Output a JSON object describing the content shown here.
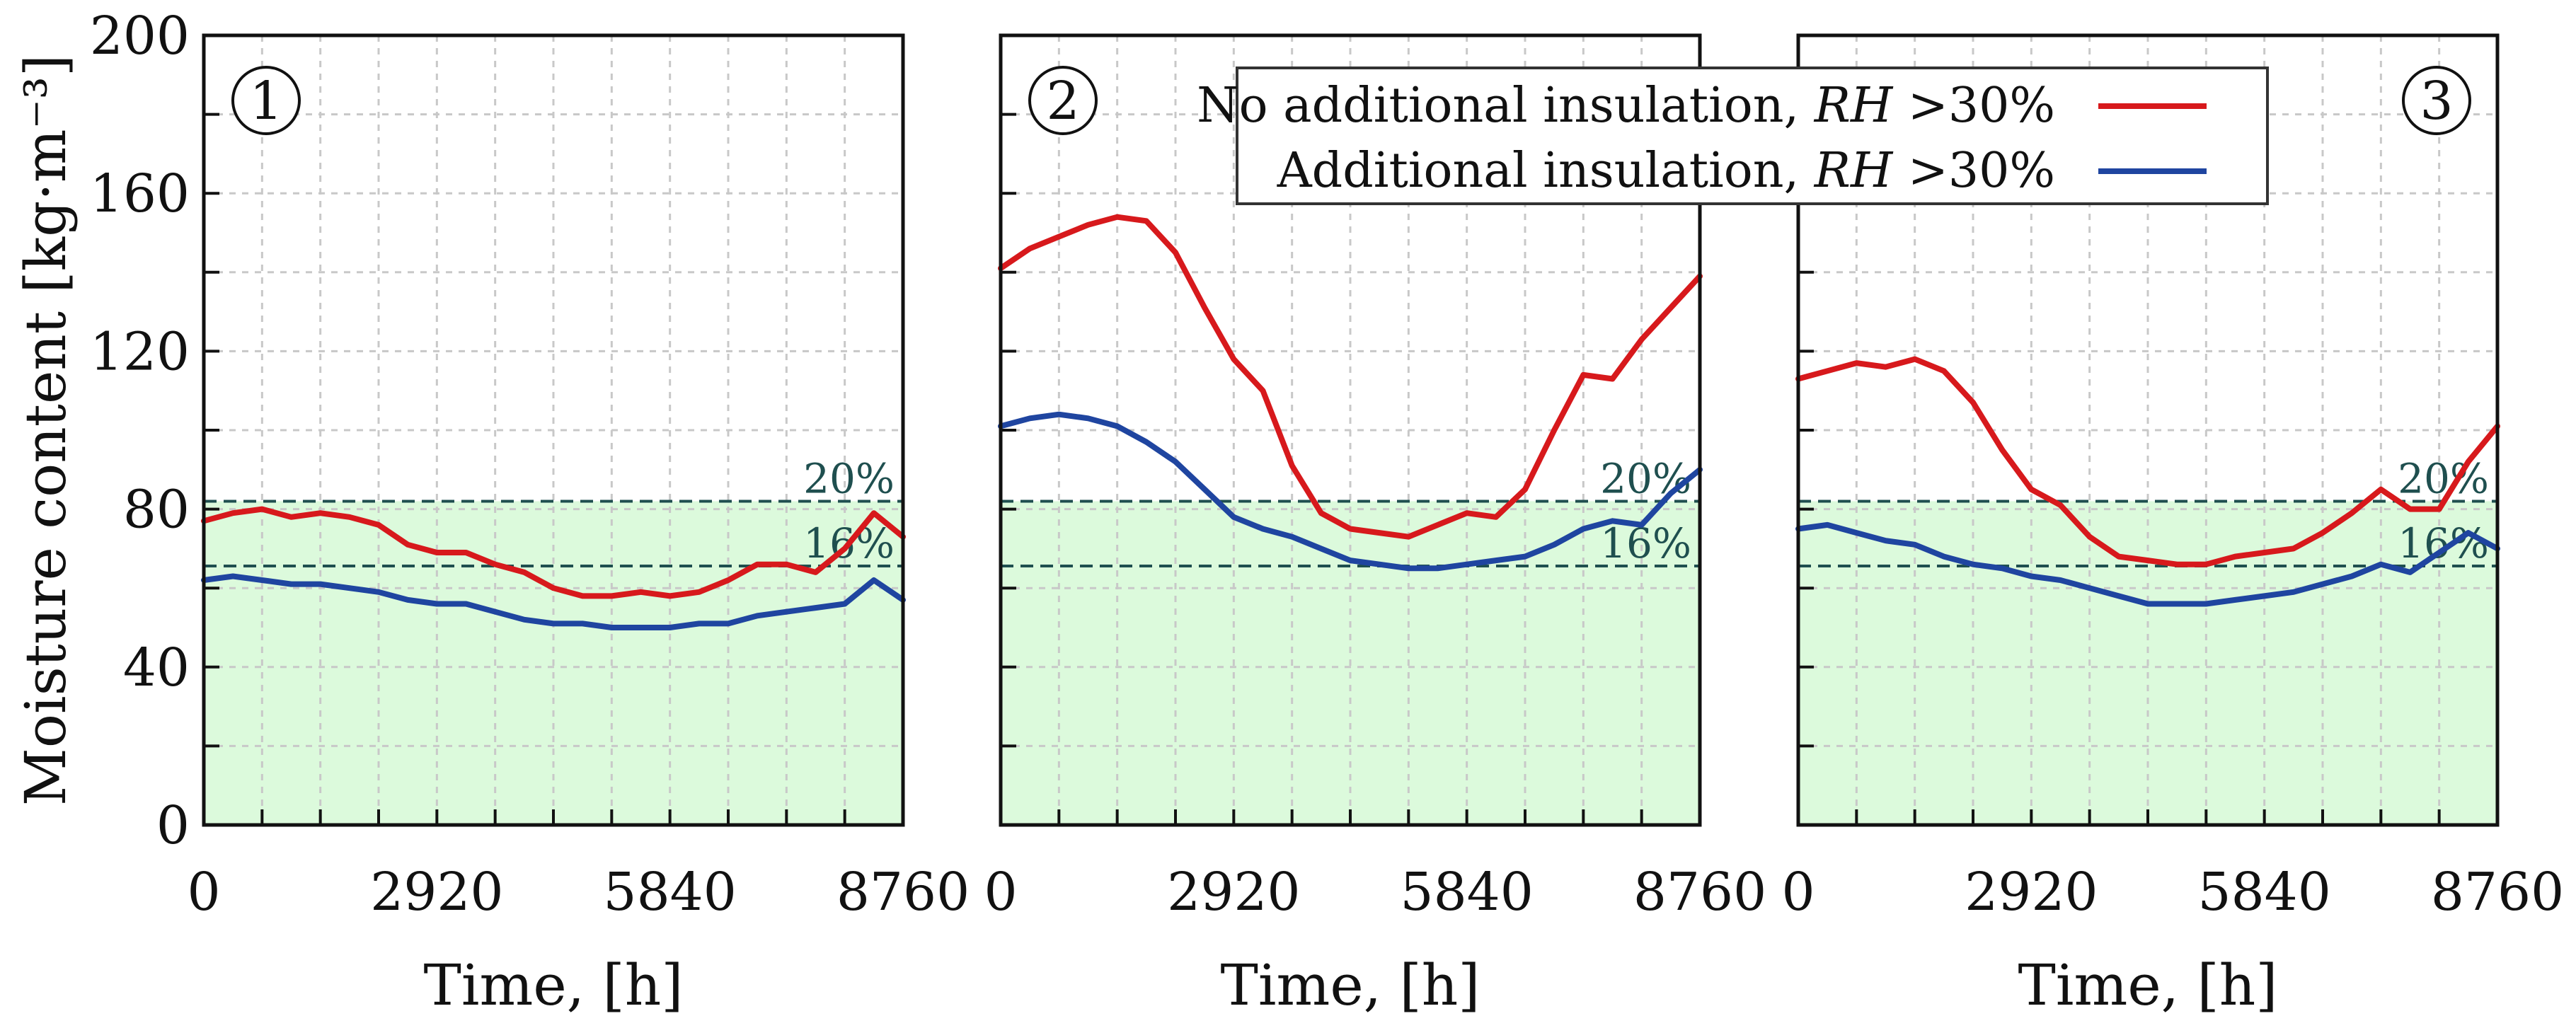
{
  "chart_data": {
    "type": "line",
    "y_axis_title": "Moisture content [kg·m⁻³]",
    "x_axis_title": "Time, [h]",
    "xlim": [
      0,
      8760
    ],
    "ylim": [
      0,
      200
    ],
    "x_ticks": [
      "0",
      "2920",
      "5840",
      "8760"
    ],
    "y_ticks": [
      "0",
      "40",
      "80",
      "120",
      "160",
      "200"
    ],
    "grid": true,
    "reference_lines": [
      {
        "label": "20%",
        "y": 82
      },
      {
        "label": "16%",
        "y": 65.6
      }
    ],
    "shaded_region": {
      "from": 0,
      "to": 82,
      "color": "#dcfadc"
    },
    "legend": {
      "placement": "top-center",
      "entries": [
        {
          "name": "No additional insulation, ",
          "italic": "RH",
          "suffix": " >30%",
          "color": "#d7191c"
        },
        {
          "name": "Additional insulation, ",
          "italic": "RH",
          "suffix": " >30%",
          "color": "#1f45a0"
        }
      ]
    },
    "panels": [
      {
        "badge": "1",
        "series": [
          {
            "name": "No additional insulation, RH >30%",
            "color": "#d7191c",
            "x": [
              0,
              365,
              730,
              1095,
              1460,
              1825,
              2190,
              2555,
              2920,
              3285,
              3650,
              4015,
              4380,
              4745,
              5110,
              5475,
              5840,
              6205,
              6570,
              6935,
              7300,
              7665,
              8030,
              8395,
              8760
            ],
            "y": [
              77,
              79,
              80,
              78,
              79,
              78,
              76,
              71,
              69,
              69,
              66,
              64,
              60,
              58,
              58,
              59,
              58,
              59,
              62,
              66,
              66,
              64,
              70,
              79,
              73
            ]
          },
          {
            "name": "Additional insulation, RH >30%",
            "color": "#1f45a0",
            "x": [
              0,
              365,
              730,
              1095,
              1460,
              1825,
              2190,
              2555,
              2920,
              3285,
              3650,
              4015,
              4380,
              4745,
              5110,
              5475,
              5840,
              6205,
              6570,
              6935,
              7300,
              7665,
              8030,
              8395,
              8760
            ],
            "y": [
              62,
              63,
              62,
              61,
              61,
              60,
              59,
              57,
              56,
              56,
              54,
              52,
              51,
              51,
              50,
              50,
              50,
              51,
              51,
              53,
              54,
              55,
              56,
              62,
              57
            ]
          }
        ]
      },
      {
        "badge": "2",
        "series": [
          {
            "name": "No additional insulation, RH >30%",
            "color": "#d7191c",
            "x": [
              0,
              365,
              730,
              1095,
              1460,
              1825,
              2190,
              2555,
              2920,
              3285,
              3650,
              4015,
              4380,
              4745,
              5110,
              5475,
              5840,
              6205,
              6570,
              6935,
              7300,
              7665,
              8030,
              8395,
              8760
            ],
            "y": [
              141,
              146,
              149,
              152,
              154,
              153,
              145,
              131,
              118,
              110,
              91,
              79,
              75,
              74,
              73,
              76,
              79,
              78,
              85,
              100,
              114,
              113,
              123,
              131,
              139
            ]
          },
          {
            "name": "Additional insulation, RH >30%",
            "color": "#1f45a0",
            "x": [
              0,
              365,
              730,
              1095,
              1460,
              1825,
              2190,
              2555,
              2920,
              3285,
              3650,
              4015,
              4380,
              4745,
              5110,
              5475,
              5840,
              6205,
              6570,
              6935,
              7300,
              7665,
              8030,
              8395,
              8760
            ],
            "y": [
              101,
              103,
              104,
              103,
              101,
              97,
              92,
              85,
              78,
              75,
              73,
              70,
              67,
              66,
              65,
              65,
              66,
              67,
              68,
              71,
              75,
              77,
              76,
              84,
              90
            ]
          }
        ]
      },
      {
        "badge": "3",
        "series": [
          {
            "name": "No additional insulation, RH >30%",
            "color": "#d7191c",
            "x": [
              0,
              365,
              730,
              1095,
              1460,
              1825,
              2190,
              2555,
              2920,
              3285,
              3650,
              4015,
              4380,
              4745,
              5110,
              5475,
              5840,
              6205,
              6570,
              6935,
              7300,
              7665,
              8030,
              8395,
              8760
            ],
            "y": [
              113,
              115,
              117,
              116,
              118,
              115,
              107,
              95,
              85,
              81,
              73,
              68,
              67,
              66,
              66,
              68,
              69,
              70,
              74,
              79,
              85,
              80,
              80,
              92,
              101
            ]
          },
          {
            "name": "Additional insulation, RH >30%",
            "color": "#1f45a0",
            "x": [
              0,
              365,
              730,
              1095,
              1460,
              1825,
              2190,
              2555,
              2920,
              3285,
              3650,
              4015,
              4380,
              4745,
              5110,
              5475,
              5840,
              6205,
              6570,
              6935,
              7300,
              7665,
              8030,
              8395,
              8760
            ],
            "y": [
              75,
              76,
              74,
              72,
              71,
              68,
              66,
              65,
              63,
              62,
              60,
              58,
              56,
              56,
              56,
              57,
              58,
              59,
              61,
              63,
              66,
              64,
              69,
              74,
              70
            ]
          }
        ]
      }
    ]
  }
}
